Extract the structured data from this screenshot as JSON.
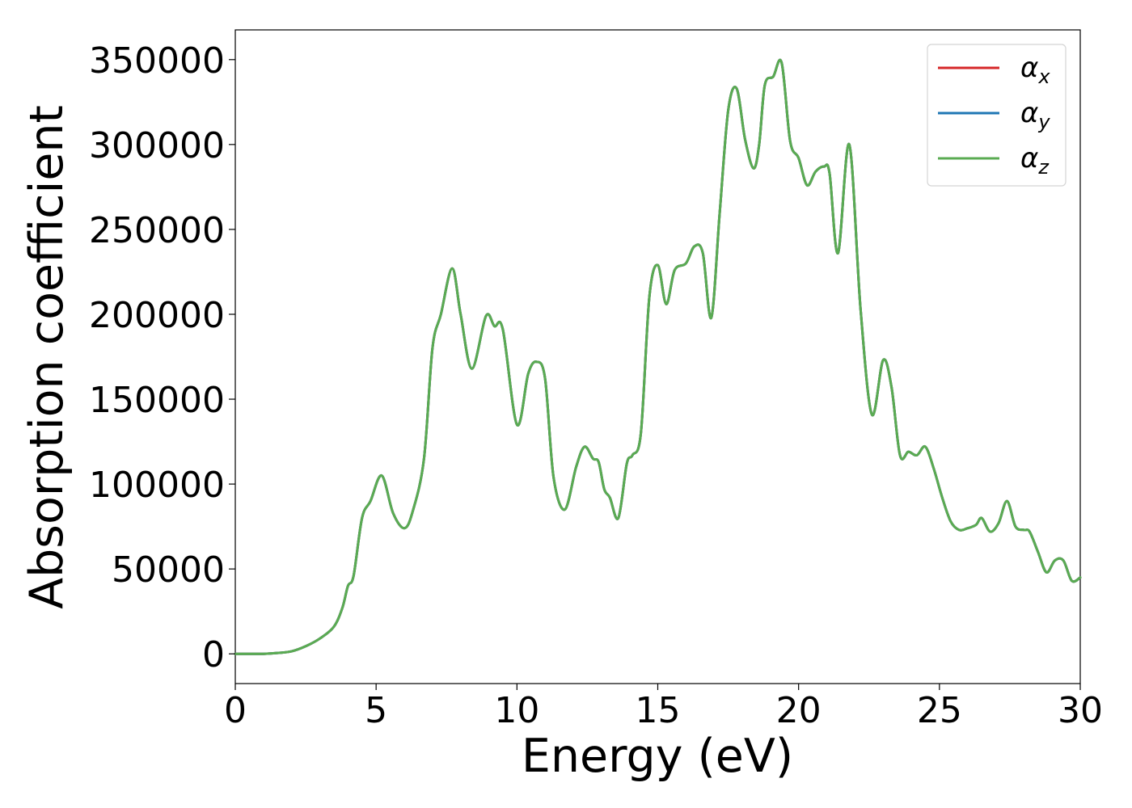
{
  "chart_data": {
    "type": "line",
    "title": "",
    "xlabel": "Energy (eV)",
    "ylabel": "Absorption coefficient",
    "xlim": [
      0,
      30
    ],
    "ylim": [
      -17500,
      367500
    ],
    "xticks": [
      0,
      5,
      10,
      15,
      20,
      25,
      30
    ],
    "xtick_labels": [
      "0",
      "5",
      "10",
      "15",
      "20",
      "25",
      "30"
    ],
    "yticks": [
      0,
      50000,
      100000,
      150000,
      200000,
      250000,
      300000,
      350000
    ],
    "ytick_labels": [
      "0",
      "50000",
      "100000",
      "150000",
      "200000",
      "250000",
      "300000",
      "350000"
    ],
    "grid": false,
    "legend": "top-right",
    "x": [
      0,
      0.5,
      1.0,
      1.5,
      2.0,
      2.5,
      3.0,
      3.5,
      3.8,
      4.0,
      4.2,
      4.5,
      4.8,
      5.2,
      5.6,
      6.0,
      6.3,
      6.7,
      7.0,
      7.3,
      7.7,
      8.0,
      8.4,
      8.9,
      9.2,
      9.5,
      10.0,
      10.4,
      10.7,
      11.0,
      11.3,
      11.7,
      12.1,
      12.4,
      12.7,
      12.9,
      13.1,
      13.3,
      13.6,
      13.9,
      14.1,
      14.4,
      14.7,
      15.0,
      15.3,
      15.6,
      16.0,
      16.3,
      16.6,
      16.9,
      17.2,
      17.5,
      17.8,
      18.1,
      18.4,
      18.6,
      18.8,
      19.1,
      19.4,
      19.7,
      20.0,
      20.3,
      20.6,
      20.9,
      21.1,
      21.4,
      21.8,
      22.2,
      22.6,
      23.0,
      23.3,
      23.6,
      23.9,
      24.2,
      24.5,
      24.8,
      25.1,
      25.4,
      25.7,
      26.0,
      26.3,
      26.5,
      26.8,
      27.1,
      27.4,
      27.7,
      28.0,
      28.2,
      28.5,
      28.8,
      29.1,
      29.4,
      29.7,
      30.0
    ],
    "series": [
      {
        "name": "αx",
        "color": "#d62728",
        "values": [
          0,
          0,
          0,
          500,
          1500,
          4500,
          9000,
          16000,
          27000,
          40000,
          46000,
          80000,
          90000,
          105000,
          83000,
          74000,
          84000,
          115000,
          180000,
          200000,
          227000,
          200000,
          168000,
          199000,
          193000,
          191000,
          135000,
          165000,
          172000,
          162000,
          104000,
          85000,
          110000,
          122000,
          115000,
          113000,
          97000,
          92000,
          80000,
          112000,
          117000,
          130000,
          210000,
          229000,
          206000,
          226000,
          230000,
          240000,
          236000,
          198000,
          260000,
          320000,
          333000,
          303000,
          286000,
          300000,
          335000,
          340000,
          348000,
          302000,
          292000,
          276000,
          284000,
          287000,
          283000,
          236000,
          300000,
          203000,
          141000,
          173000,
          157000,
          117000,
          119000,
          117000,
          122000,
          109000,
          92000,
          78000,
          73000,
          74000,
          76000,
          80000,
          72000,
          77000,
          90000,
          75000,
          73000,
          72000,
          60000,
          48000,
          55000,
          55000,
          43000,
          45000
        ]
      },
      {
        "name": "αy",
        "color": "#1f77b4",
        "values": [
          0,
          0,
          0,
          500,
          1500,
          4500,
          9000,
          16000,
          27000,
          40000,
          46000,
          80000,
          90000,
          105000,
          83000,
          74000,
          84000,
          115000,
          180000,
          200000,
          227000,
          200000,
          168000,
          199000,
          193000,
          191000,
          135000,
          165000,
          172000,
          162000,
          104000,
          85000,
          110000,
          122000,
          115000,
          113000,
          97000,
          92000,
          80000,
          112000,
          117000,
          130000,
          210000,
          229000,
          206000,
          226000,
          230000,
          240000,
          236000,
          198000,
          260000,
          320000,
          333000,
          303000,
          286000,
          300000,
          335000,
          340000,
          348000,
          302000,
          292000,
          276000,
          284000,
          287000,
          283000,
          236000,
          300000,
          203000,
          141000,
          173000,
          157000,
          117000,
          119000,
          117000,
          122000,
          109000,
          92000,
          78000,
          73000,
          74000,
          76000,
          80000,
          72000,
          77000,
          90000,
          75000,
          73000,
          72000,
          60000,
          48000,
          55000,
          55000,
          43000,
          45000
        ]
      },
      {
        "name": "αz",
        "color": "#5aab52",
        "values": [
          0,
          0,
          0,
          500,
          1500,
          4500,
          9000,
          16000,
          27000,
          40000,
          46000,
          80000,
          90000,
          105000,
          83000,
          74000,
          84000,
          115000,
          180000,
          200000,
          227000,
          200000,
          168000,
          199000,
          193000,
          191000,
          135000,
          165000,
          172000,
          162000,
          104000,
          85000,
          110000,
          122000,
          115000,
          113000,
          97000,
          92000,
          80000,
          112000,
          117000,
          130000,
          210000,
          229000,
          206000,
          226000,
          230000,
          240000,
          236000,
          198000,
          260000,
          320000,
          333000,
          303000,
          286000,
          300000,
          335000,
          340000,
          348000,
          302000,
          292000,
          276000,
          284000,
          287000,
          283000,
          236000,
          300000,
          203000,
          141000,
          173000,
          157000,
          117000,
          119000,
          117000,
          122000,
          109000,
          92000,
          78000,
          73000,
          74000,
          76000,
          80000,
          72000,
          77000,
          90000,
          75000,
          73000,
          72000,
          60000,
          48000,
          55000,
          55000,
          43000,
          45000
        ]
      }
    ],
    "legend_entries": [
      {
        "greek": "α",
        "sub": "x",
        "color": "#d62728"
      },
      {
        "greek": "α",
        "sub": "y",
        "color": "#1f77b4"
      },
      {
        "greek": "α",
        "sub": "z",
        "color": "#5aab52"
      }
    ]
  }
}
